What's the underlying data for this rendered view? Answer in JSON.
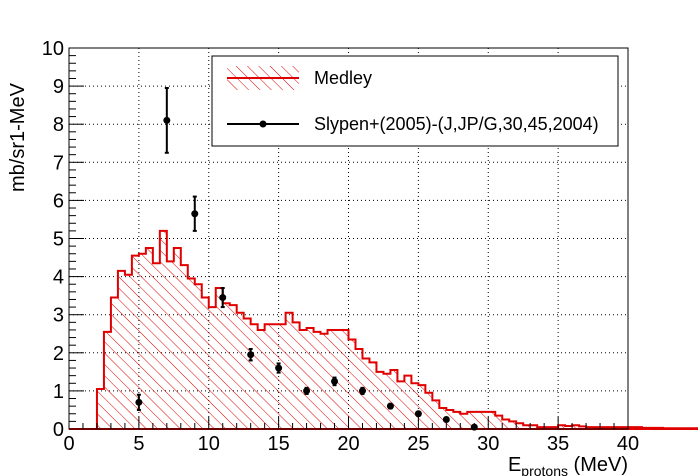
{
  "chart_data": {
    "type": "line",
    "xlabel": "E",
    "xlabel_sub": "protons",
    "xlabel_unit": " (MeV)",
    "ylabel": "mb/sr1-MeV",
    "xlim": [
      0,
      40
    ],
    "ylim": [
      0,
      10
    ],
    "grid": true,
    "legend_position": "top-right",
    "x_ticks": [
      0,
      5,
      10,
      15,
      20,
      25,
      30,
      35,
      40
    ],
    "y_ticks": [
      0,
      1,
      2,
      3,
      4,
      5,
      6,
      7,
      8,
      9,
      10
    ],
    "series": [
      {
        "name": "Medley",
        "style": "histogram-hatched",
        "color": "#e00000",
        "bin_width": 0.5,
        "bin_edges_start": 0,
        "values": [
          0,
          0,
          0,
          0,
          1.05,
          2.55,
          3.45,
          4.15,
          4.05,
          4.55,
          4.6,
          4.75,
          4.35,
          5.2,
          4.4,
          4.75,
          4.3,
          3.95,
          3.8,
          3.45,
          3.2,
          3.7,
          3.3,
          3.25,
          3.05,
          2.9,
          2.75,
          2.6,
          2.75,
          2.75,
          2.75,
          3.05,
          2.8,
          2.6,
          2.65,
          2.55,
          2.5,
          2.6,
          2.6,
          2.6,
          2.35,
          2.1,
          1.85,
          1.75,
          1.5,
          1.45,
          1.55,
          1.25,
          1.4,
          1.2,
          1.15,
          0.95,
          0.75,
          0.55,
          0.5,
          0.45,
          0.4,
          0.45,
          0.45,
          0.45,
          0.45,
          0.35,
          0.25,
          0.2,
          0.15,
          0.1,
          0.1,
          0.05,
          0.05,
          0.05,
          0.1,
          0.08,
          0.1,
          0.07,
          0.05,
          0.05,
          0.05,
          0.05,
          0.05,
          0.05,
          0.05,
          0.05,
          0.03,
          0.03,
          0.03,
          0.02,
          0.02,
          0.02,
          0.02,
          0.02,
          0.02,
          0.02,
          0.02,
          0.02,
          0.02,
          0.02,
          0.01,
          0.01,
          0.01,
          0.01
        ]
      },
      {
        "name": "Slypen+(2005)-(J,JP/G,30,45,2004)",
        "style": "points-errorbars",
        "color": "#000000",
        "x": [
          5,
          7,
          9,
          11,
          13,
          15,
          17,
          19,
          21,
          23,
          25,
          27,
          29
        ],
        "y": [
          0.7,
          8.1,
          5.65,
          3.45,
          1.95,
          1.6,
          1.0,
          1.25,
          1.0,
          0.6,
          0.4,
          0.25,
          0.05
        ],
        "yerr": [
          0.2,
          0.85,
          0.45,
          0.25,
          0.15,
          0.12,
          0.08,
          0.1,
          0.08,
          0.06,
          0.05,
          0.05,
          0.03
        ]
      }
    ]
  }
}
